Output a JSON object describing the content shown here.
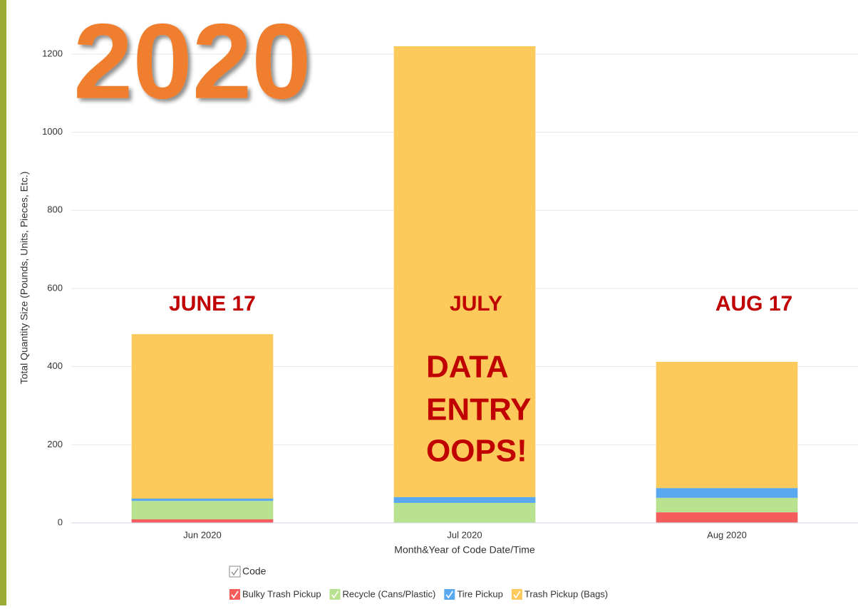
{
  "chart_data": {
    "type": "stacked_bar",
    "title": "2020",
    "y_axis_label": "Total Quantity Size (Pounds, Units, Pieces, Etc.)",
    "x_axis_label": "Month&Year of Code Date/Time",
    "legend_title": "Code",
    "categories": [
      "Jun 2020",
      "Jul 2020",
      "Aug 2020"
    ],
    "series": [
      {
        "name": "Bulky Trash Pickup",
        "color": "#f45b5b",
        "values": [
          9,
          0,
          27
        ]
      },
      {
        "name": "Recycle (Cans/Plastic)",
        "color": "#b8e28f",
        "values": [
          47,
          51,
          37
        ]
      },
      {
        "name": "Tire Pickup",
        "color": "#5aa9f0",
        "values": [
          6,
          15,
          25
        ]
      },
      {
        "name": "Trash Pickup (Bags)",
        "color": "#fcc95b",
        "values": [
          421,
          1154,
          323
        ]
      }
    ],
    "ylim": [
      0,
      1280
    ],
    "yticks": [
      0,
      200,
      400,
      600,
      800,
      1000,
      1200
    ],
    "grid": true,
    "annotations": [
      "JUNE 17",
      "JULY",
      "AUG 17",
      "DATA",
      "ENTRY",
      "OOPS!"
    ]
  }
}
